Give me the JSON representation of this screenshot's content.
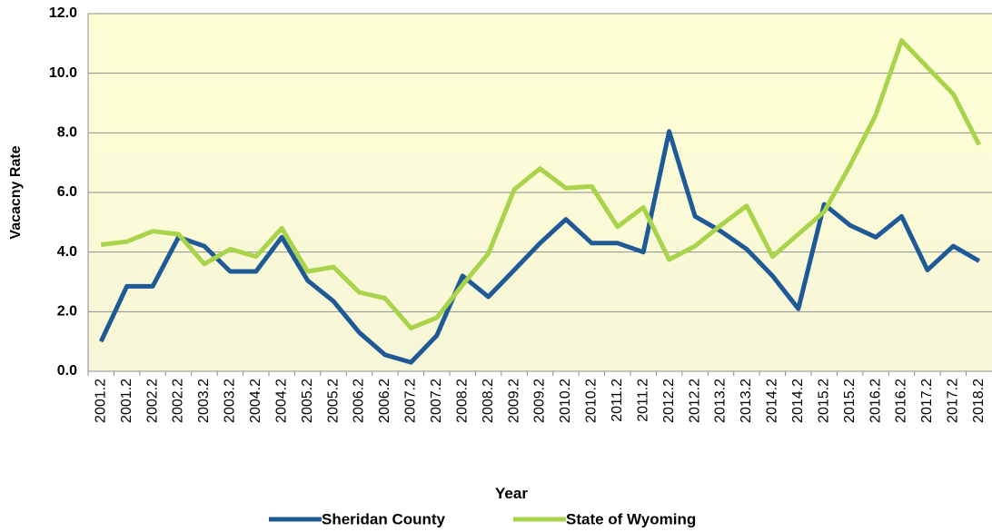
{
  "chart_data": {
    "type": "line",
    "x_label": "Year",
    "y_label": "Vacacny Rate",
    "categories": [
      "2001.2",
      "2001.2",
      "2002.2",
      "2002.2",
      "2003.2",
      "2003.2",
      "2004.2",
      "2004.2",
      "2005.2",
      "2005.2",
      "2006.2",
      "2006.2",
      "2007.2",
      "2007.2",
      "2008.2",
      "2008.2",
      "2009.2",
      "2009.2",
      "2010.2",
      "2010.2",
      "2011.2",
      "2011.2",
      "2012.2",
      "2012.2",
      "2013.2",
      "2013.2",
      "2014.2",
      "2014.2",
      "2015.2",
      "2015.2",
      "2016.2",
      "2016.2",
      "2017.2",
      "2017.2",
      "2018.2"
    ],
    "series": [
      {
        "name": "Sheridan County",
        "color": "#1f5a96",
        "values": [
          1.0,
          2.85,
          2.85,
          4.5,
          4.2,
          3.35,
          3.35,
          4.5,
          3.05,
          2.35,
          1.3,
          0.55,
          0.3,
          1.2,
          3.2,
          2.5,
          3.4,
          4.3,
          5.1,
          4.3,
          4.3,
          4.0,
          8.05,
          5.2,
          4.7,
          4.1,
          3.2,
          2.1,
          5.6,
          4.9,
          4.5,
          5.2,
          3.4,
          4.2,
          3.7
        ]
      },
      {
        "name": "State of Wyoming",
        "color": "#a9d34a",
        "values": [
          4.25,
          4.35,
          4.7,
          4.6,
          3.6,
          4.1,
          3.85,
          4.8,
          3.35,
          3.5,
          2.65,
          2.45,
          1.45,
          1.8,
          2.9,
          3.95,
          6.1,
          6.8,
          6.15,
          6.2,
          4.85,
          5.5,
          3.75,
          4.2,
          4.9,
          5.55,
          3.85,
          4.6,
          5.35,
          6.9,
          8.6,
          11.1,
          10.2,
          9.3,
          7.6
        ]
      }
    ],
    "ylim": [
      0,
      12
    ],
    "yticks": [
      {
        "value": 0,
        "label": "0.0"
      },
      {
        "value": 2,
        "label": "2.0"
      },
      {
        "value": 4,
        "label": "4.0"
      },
      {
        "value": 6,
        "label": "6.0"
      },
      {
        "value": 8,
        "label": "8.0"
      },
      {
        "value": 10,
        "label": "10.0"
      },
      {
        "value": 12,
        "label": "12.0"
      }
    ],
    "grid": true,
    "legend": "bottom"
  }
}
